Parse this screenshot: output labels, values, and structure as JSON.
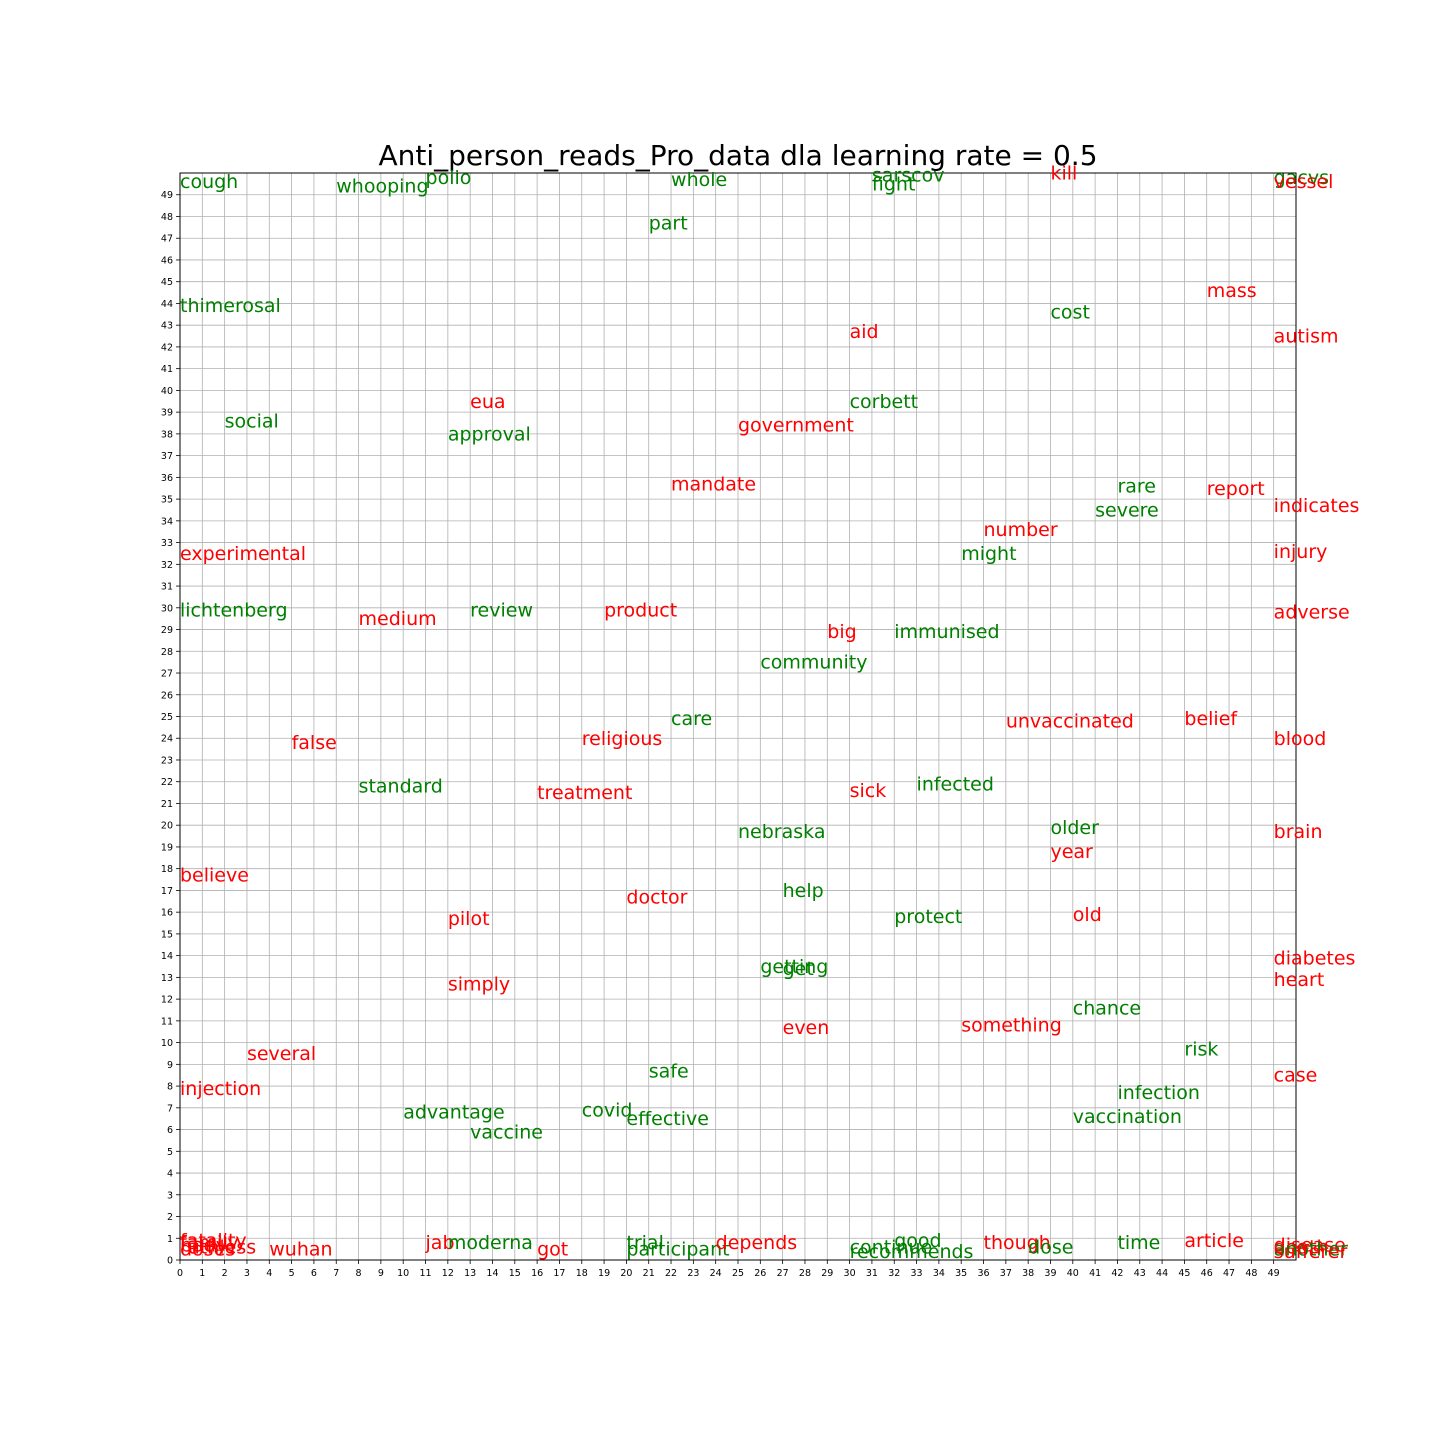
{
  "chart_data": {
    "type": "scatter",
    "title": "Anti_person_reads_Pro_data dla learning rate = 0.5",
    "xlabel": "",
    "ylabel": "",
    "xlim": [
      0,
      50
    ],
    "ylim": [
      0,
      50
    ],
    "xticks": [
      0,
      1,
      2,
      3,
      4,
      5,
      6,
      7,
      8,
      9,
      10,
      11,
      12,
      13,
      14,
      15,
      16,
      17,
      18,
      19,
      20,
      21,
      22,
      23,
      24,
      25,
      26,
      27,
      28,
      29,
      30,
      31,
      32,
      33,
      34,
      35,
      36,
      37,
      38,
      39,
      40,
      41,
      42,
      43,
      44,
      45,
      46,
      47,
      48,
      49
    ],
    "yticks": [
      0,
      1,
      2,
      3,
      4,
      5,
      6,
      7,
      8,
      9,
      10,
      11,
      12,
      13,
      14,
      15,
      16,
      17,
      18,
      19,
      20,
      21,
      22,
      23,
      24,
      25,
      26,
      27,
      28,
      29,
      30,
      31,
      32,
      33,
      34,
      35,
      36,
      37,
      38,
      39,
      40,
      41,
      42,
      43,
      44,
      45,
      46,
      47,
      48,
      49
    ],
    "grid": true,
    "colors": {
      "green": "#008000",
      "red": "#ff0000"
    },
    "points": [
      {
        "word": "cough",
        "x": 0,
        "y": 49.3,
        "color": "green"
      },
      {
        "word": "whooping",
        "x": 7,
        "y": 49.1,
        "color": "green"
      },
      {
        "word": "polio",
        "x": 11,
        "y": 49.5,
        "color": "green"
      },
      {
        "word": "whole",
        "x": 22,
        "y": 49.4,
        "color": "green"
      },
      {
        "word": "sarscov",
        "x": 31,
        "y": 49.6,
        "color": "green"
      },
      {
        "word": "fight",
        "x": 31,
        "y": 49.2,
        "color": "green"
      },
      {
        "word": "kill",
        "x": 39,
        "y": 49.7,
        "color": "red"
      },
      {
        "word": "gacvs",
        "x": 49,
        "y": 49.5,
        "color": "green"
      },
      {
        "word": "vessel",
        "x": 49,
        "y": 49.3,
        "color": "red"
      },
      {
        "word": "part",
        "x": 21,
        "y": 47.4,
        "color": "green"
      },
      {
        "word": "mass",
        "x": 46,
        "y": 44.3,
        "color": "red"
      },
      {
        "word": "thimerosal",
        "x": 0,
        "y": 43.6,
        "color": "green"
      },
      {
        "word": "cost",
        "x": 39,
        "y": 43.3,
        "color": "green"
      },
      {
        "word": "aid",
        "x": 30,
        "y": 42.4,
        "color": "red"
      },
      {
        "word": "autism",
        "x": 49,
        "y": 42.2,
        "color": "red"
      },
      {
        "word": "eua",
        "x": 13,
        "y": 39.2,
        "color": "red"
      },
      {
        "word": "corbett",
        "x": 30,
        "y": 39.2,
        "color": "green"
      },
      {
        "word": "social",
        "x": 2,
        "y": 38.3,
        "color": "green"
      },
      {
        "word": "government",
        "x": 25,
        "y": 38.1,
        "color": "red"
      },
      {
        "word": "approval",
        "x": 12,
        "y": 37.7,
        "color": "green"
      },
      {
        "word": "mandate",
        "x": 22,
        "y": 35.4,
        "color": "red"
      },
      {
        "word": "rare",
        "x": 42,
        "y": 35.3,
        "color": "green"
      },
      {
        "word": "report",
        "x": 46,
        "y": 35.2,
        "color": "red"
      },
      {
        "word": "indicates",
        "x": 49,
        "y": 34.4,
        "color": "red"
      },
      {
        "word": "severe",
        "x": 41,
        "y": 34.2,
        "color": "green"
      },
      {
        "word": "number",
        "x": 36,
        "y": 33.3,
        "color": "red"
      },
      {
        "word": "experimental",
        "x": 0,
        "y": 32.2,
        "color": "red"
      },
      {
        "word": "might",
        "x": 35,
        "y": 32.2,
        "color": "green"
      },
      {
        "word": "injury",
        "x": 49,
        "y": 32.3,
        "color": "red"
      },
      {
        "word": "lichtenberg",
        "x": 0,
        "y": 29.6,
        "color": "green"
      },
      {
        "word": "review",
        "x": 13,
        "y": 29.6,
        "color": "green"
      },
      {
        "word": "product",
        "x": 19,
        "y": 29.6,
        "color": "red"
      },
      {
        "word": "adverse",
        "x": 49,
        "y": 29.5,
        "color": "red"
      },
      {
        "word": "medium",
        "x": 8,
        "y": 29.2,
        "color": "red"
      },
      {
        "word": "big",
        "x": 29,
        "y": 28.6,
        "color": "red"
      },
      {
        "word": "immunised",
        "x": 32,
        "y": 28.6,
        "color": "green"
      },
      {
        "word": "community",
        "x": 26,
        "y": 27.2,
        "color": "green"
      },
      {
        "word": "care",
        "x": 22,
        "y": 24.6,
        "color": "green"
      },
      {
        "word": "unvaccinated",
        "x": 37,
        "y": 24.5,
        "color": "red"
      },
      {
        "word": "belief",
        "x": 45,
        "y": 24.6,
        "color": "red"
      },
      {
        "word": "religious",
        "x": 18,
        "y": 23.7,
        "color": "red"
      },
      {
        "word": "blood",
        "x": 49,
        "y": 23.7,
        "color": "red"
      },
      {
        "word": "false",
        "x": 5,
        "y": 23.5,
        "color": "red"
      },
      {
        "word": "standard",
        "x": 8,
        "y": 21.5,
        "color": "green"
      },
      {
        "word": "infected",
        "x": 33,
        "y": 21.6,
        "color": "green"
      },
      {
        "word": "treatment",
        "x": 16,
        "y": 21.2,
        "color": "red"
      },
      {
        "word": "sick",
        "x": 30,
        "y": 21.3,
        "color": "red"
      },
      {
        "word": "older",
        "x": 39,
        "y": 19.6,
        "color": "green"
      },
      {
        "word": "nebraska",
        "x": 25,
        "y": 19.4,
        "color": "green"
      },
      {
        "word": "brain",
        "x": 49,
        "y": 19.4,
        "color": "red"
      },
      {
        "word": "year",
        "x": 39,
        "y": 18.5,
        "color": "red"
      },
      {
        "word": "believe",
        "x": 0,
        "y": 17.4,
        "color": "red"
      },
      {
        "word": "help",
        "x": 27,
        "y": 16.7,
        "color": "green"
      },
      {
        "word": "doctor",
        "x": 20,
        "y": 16.4,
        "color": "red"
      },
      {
        "word": "pilot",
        "x": 12,
        "y": 15.4,
        "color": "red"
      },
      {
        "word": "protect",
        "x": 32,
        "y": 15.5,
        "color": "green"
      },
      {
        "word": "old",
        "x": 40,
        "y": 15.6,
        "color": "red"
      },
      {
        "word": "diabetes",
        "x": 49,
        "y": 13.6,
        "color": "red"
      },
      {
        "word": "getting",
        "x": 26,
        "y": 13.2,
        "color": "green"
      },
      {
        "word": "get",
        "x": 27,
        "y": 13.1,
        "color": "green"
      },
      {
        "word": "heart",
        "x": 49,
        "y": 12.6,
        "color": "red"
      },
      {
        "word": "simply",
        "x": 12,
        "y": 12.4,
        "color": "red"
      },
      {
        "word": "chance",
        "x": 40,
        "y": 11.3,
        "color": "green"
      },
      {
        "word": "even",
        "x": 27,
        "y": 10.4,
        "color": "red"
      },
      {
        "word": "something",
        "x": 35,
        "y": 10.5,
        "color": "red"
      },
      {
        "word": "risk",
        "x": 45,
        "y": 9.4,
        "color": "green"
      },
      {
        "word": "several",
        "x": 3,
        "y": 9.2,
        "color": "red"
      },
      {
        "word": "safe",
        "x": 21,
        "y": 8.4,
        "color": "green"
      },
      {
        "word": "case",
        "x": 49,
        "y": 8.2,
        "color": "red"
      },
      {
        "word": "injection",
        "x": 0,
        "y": 7.6,
        "color": "red"
      },
      {
        "word": "infection",
        "x": 42,
        "y": 7.4,
        "color": "green"
      },
      {
        "word": "advantage",
        "x": 10,
        "y": 6.5,
        "color": "green"
      },
      {
        "word": "covid",
        "x": 18,
        "y": 6.6,
        "color": "green"
      },
      {
        "word": "effective",
        "x": 20,
        "y": 6.2,
        "color": "green"
      },
      {
        "word": "vaccination",
        "x": 40,
        "y": 6.3,
        "color": "green"
      },
      {
        "word": "vaccine",
        "x": 13,
        "y": 5.6,
        "color": "green"
      },
      {
        "word": "fatality",
        "x": 0,
        "y": 0.6,
        "color": "red"
      },
      {
        "word": "family",
        "x": 0,
        "y": 0.5,
        "color": "red"
      },
      {
        "word": "body",
        "x": 0,
        "y": 0.4,
        "color": "red"
      },
      {
        "word": "ruthless",
        "x": 0,
        "y": 0.3,
        "color": "red"
      },
      {
        "word": "doses",
        "x": 0,
        "y": 0.2,
        "color": "red"
      },
      {
        "word": "wuhan",
        "x": 4,
        "y": 0.2,
        "color": "red"
      },
      {
        "word": "jab",
        "x": 11,
        "y": 0.5,
        "color": "red"
      },
      {
        "word": "moderna",
        "x": 12,
        "y": 0.5,
        "color": "green"
      },
      {
        "word": "got",
        "x": 16,
        "y": 0.2,
        "color": "red"
      },
      {
        "word": "trial",
        "x": 20,
        "y": 0.5,
        "color": "green"
      },
      {
        "word": "participant",
        "x": 20,
        "y": 0.2,
        "color": "green"
      },
      {
        "word": "depends",
        "x": 24,
        "y": 0.5,
        "color": "red"
      },
      {
        "word": "good",
        "x": 32,
        "y": 0.6,
        "color": "green"
      },
      {
        "word": "continue",
        "x": 30,
        "y": 0.3,
        "color": "green"
      },
      {
        "word": "recommends",
        "x": 30,
        "y": 0.1,
        "color": "green"
      },
      {
        "word": "though",
        "x": 36,
        "y": 0.5,
        "color": "red"
      },
      {
        "word": "dose",
        "x": 38,
        "y": 0.3,
        "color": "green"
      },
      {
        "word": "time",
        "x": 42,
        "y": 0.5,
        "color": "green"
      },
      {
        "word": "article",
        "x": 45,
        "y": 0.6,
        "color": "red"
      },
      {
        "word": "disease",
        "x": 49,
        "y": 0.4,
        "color": "red"
      },
      {
        "word": "death",
        "x": 49,
        "y": 0.3,
        "color": "red"
      },
      {
        "word": "another",
        "x": 49,
        "y": 0.2,
        "color": "green"
      },
      {
        "word": "sufferer",
        "x": 49,
        "y": 0.1,
        "color": "red"
      }
    ]
  }
}
